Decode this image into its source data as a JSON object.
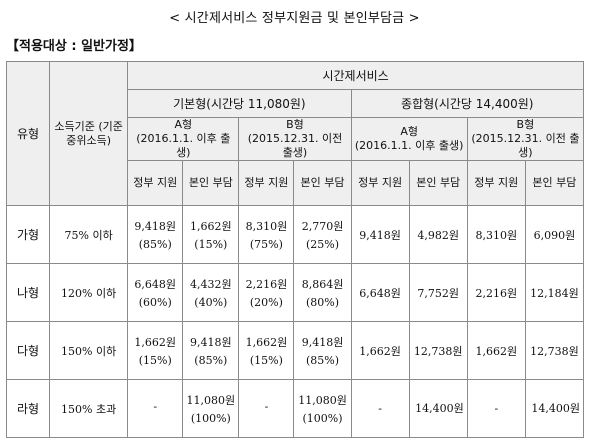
{
  "title": "< 시간제서비스 정부지원금 및 본인부담금 >",
  "subtitle": "【적용대상 : 일반가정】",
  "headers": {
    "type": "유형",
    "income": "소득기준 (기준 중위소득)",
    "service": "시간제서비스",
    "basic": "기본형(시간당 11,080원)",
    "combined": "종합형(시간당 14,400원)",
    "a_type": "A형",
    "a_cond": "(2016.1.1. 이후 출생)",
    "b_type": "B형",
    "b_cond": "(2015.12.31. 이전 출생)",
    "gov": "정부 지원",
    "self": "본인 부담"
  },
  "rows": [
    {
      "type": "가형",
      "income": "75% 이하",
      "basic_a_gov": "9,418원",
      "basic_a_gov_pct": "(85%)",
      "basic_a_self": "1,662원",
      "basic_a_self_pct": "(15%)",
      "basic_b_gov": "8,310원",
      "basic_b_gov_pct": "(75%)",
      "basic_b_self": "2,770원",
      "basic_b_self_pct": "(25%)",
      "comb_a_gov": "9,418원",
      "comb_a_self": "4,982원",
      "comb_b_gov": "8,310원",
      "comb_b_self": "6,090원"
    },
    {
      "type": "나형",
      "income": "120% 이하",
      "basic_a_gov": "6,648원",
      "basic_a_gov_pct": "(60%)",
      "basic_a_self": "4,432원",
      "basic_a_self_pct": "(40%)",
      "basic_b_gov": "2,216원",
      "basic_b_gov_pct": "(20%)",
      "basic_b_self": "8,864원",
      "basic_b_self_pct": "(80%)",
      "comb_a_gov": "6,648원",
      "comb_a_self": "7,752원",
      "comb_b_gov": "2,216원",
      "comb_b_self": "12,184원"
    },
    {
      "type": "다형",
      "income": "150% 이하",
      "basic_a_gov": "1,662원",
      "basic_a_gov_pct": "(15%)",
      "basic_a_self": "9,418원",
      "basic_a_self_pct": "(85%)",
      "basic_b_gov": "1,662원",
      "basic_b_gov_pct": "(15%)",
      "basic_b_self": "9,418원",
      "basic_b_self_pct": "(85%)",
      "comb_a_gov": "1,662원",
      "comb_a_self": "12,738원",
      "comb_b_gov": "1,662원",
      "comb_b_self": "12,738원"
    },
    {
      "type": "라형",
      "income": "150% 초과",
      "basic_a_gov": "-",
      "basic_a_gov_pct": "",
      "basic_a_self": "11,080원",
      "basic_a_self_pct": "(100%)",
      "basic_b_gov": "-",
      "basic_b_gov_pct": "",
      "basic_b_self": "11,080원",
      "basic_b_self_pct": "(100%)",
      "comb_a_gov": "-",
      "comb_a_self": "14,400원",
      "comb_b_gov": "-",
      "comb_b_self": "14,400원"
    }
  ]
}
